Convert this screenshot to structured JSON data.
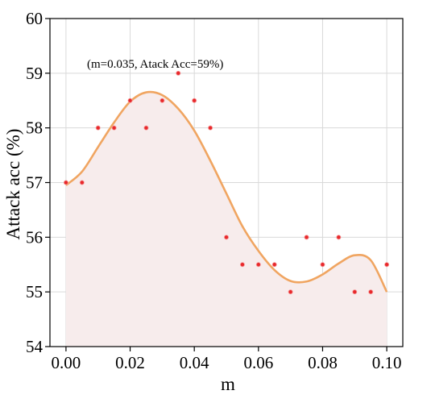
{
  "chart_data": {
    "type": "scatter",
    "xlabel": "m",
    "ylabel": "Attack acc (%)",
    "xlim": [
      -0.005,
      0.105
    ],
    "ylim": [
      54,
      60
    ],
    "x_ticks": [
      0.0,
      0.02,
      0.04,
      0.06,
      0.08,
      0.1
    ],
    "x_tick_labels": [
      "0.00",
      "0.02",
      "0.04",
      "0.06",
      "0.08",
      "0.10"
    ],
    "y_ticks": [
      54,
      55,
      56,
      57,
      58,
      59,
      60
    ],
    "y_tick_labels": [
      "54",
      "55",
      "56",
      "57",
      "58",
      "59",
      "60"
    ],
    "grid": true,
    "annotation": "(m=0.035, Atack Acc=59%)",
    "annotation_point": {
      "x": 0.035,
      "y": 59
    },
    "points": {
      "x": [
        0.0,
        0.005,
        0.01,
        0.015,
        0.02,
        0.025,
        0.03,
        0.035,
        0.04,
        0.045,
        0.05,
        0.055,
        0.06,
        0.065,
        0.07,
        0.075,
        0.08,
        0.085,
        0.09,
        0.095,
        0.1
      ],
      "y": [
        57.0,
        57.0,
        58.0,
        58.0,
        58.5,
        58.0,
        58.5,
        59.0,
        58.5,
        58.0,
        56.0,
        55.5,
        55.5,
        55.5,
        55.0,
        56.0,
        55.5,
        56.0,
        55.0,
        55.0,
        55.5
      ]
    },
    "trend": {
      "x": [
        0.0,
        0.005,
        0.01,
        0.015,
        0.02,
        0.025,
        0.03,
        0.035,
        0.04,
        0.045,
        0.05,
        0.055,
        0.06,
        0.065,
        0.07,
        0.075,
        0.08,
        0.085,
        0.09,
        0.095,
        0.1
      ],
      "y": [
        56.95,
        57.2,
        57.65,
        58.1,
        58.48,
        58.65,
        58.6,
        58.35,
        57.95,
        57.4,
        56.8,
        56.2,
        55.75,
        55.4,
        55.2,
        55.19,
        55.32,
        55.52,
        55.67,
        55.58,
        55.0
      ]
    },
    "colors": {
      "trend_line": "#f0a561",
      "trend_fill": "#f7ecec",
      "points": "#e8282b"
    }
  }
}
